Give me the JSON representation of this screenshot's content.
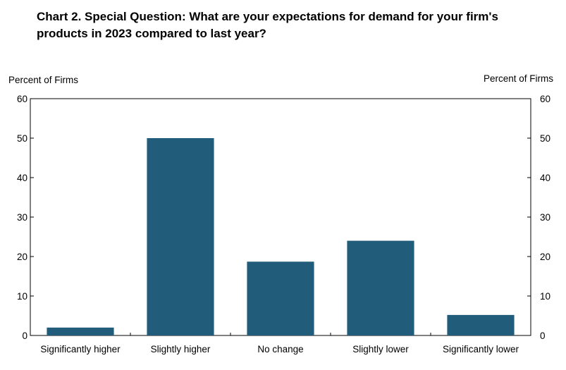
{
  "title": "Chart 2. Special Question: What are your expectations for demand for your firm's products in 2023 compared to last year?",
  "chart_data": {
    "type": "bar",
    "title": "Chart 2. Special Question: What are your expectations for demand for your firm's products in 2023 compared to last year?",
    "categories": [
      "Significantly higher",
      "Slightly higher",
      "No change",
      "Slightly lower",
      "Significantly lower"
    ],
    "values": [
      2,
      50,
      18.7,
      24,
      5.2
    ],
    "ylabel_left": "Percent of Firms",
    "ylabel_right": "Percent of Firms",
    "ylim": [
      0,
      60
    ],
    "yticks": [
      0,
      10,
      20,
      30,
      40,
      50,
      60
    ],
    "grid": false,
    "legend": "none",
    "bar_color": "#215d7a"
  }
}
